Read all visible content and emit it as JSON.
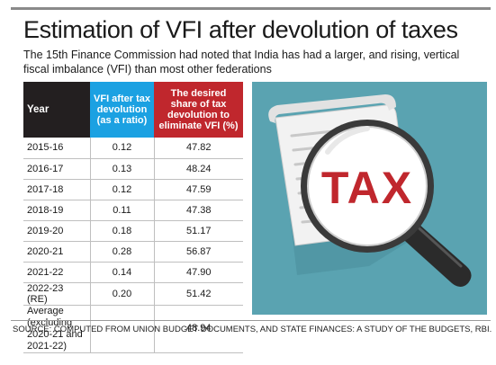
{
  "title": "Estimation of VFI after devolution of taxes",
  "subtitle": "The 15th Finance Commission had noted that India has had a larger, and rising, vertical fiscal imbalance (VFI) than most other federations",
  "table": {
    "headers": {
      "year": "Year",
      "vfi": "VFI after tax devolution (as a ratio)",
      "share": "The desired share of tax devolution to eliminate VFI (%)"
    },
    "rows": [
      {
        "year": "2015-16",
        "vfi": "0.12",
        "share": "47.82"
      },
      {
        "year": "2016-17",
        "vfi": "0.13",
        "share": "48.24"
      },
      {
        "year": "2017-18",
        "vfi": "0.12",
        "share": "47.59"
      },
      {
        "year": "2018-19",
        "vfi": "0.11",
        "share": "47.38"
      },
      {
        "year": "2019-20",
        "vfi": "0.18",
        "share": "51.17"
      },
      {
        "year": "2020-21",
        "vfi": "0.28",
        "share": "56.87"
      },
      {
        "year": "2021-22",
        "vfi": "0.14",
        "share": "47.90"
      },
      {
        "year": "2022-23 (RE)",
        "vfi": "0.20",
        "share": "51.42"
      }
    ],
    "average": {
      "label": "Average (excluding 2020-21 and 2021-22)",
      "vfi": "",
      "share": "48.94"
    }
  },
  "illustration": {
    "tax_text": "TAX",
    "icon": "magnifier-over-receipt-icon"
  },
  "colors": {
    "year_header": "#231f20",
    "vfi_header": "#1ba1e2",
    "share_header": "#c0272d",
    "illustration_bg": "#5aa3b1",
    "tax_text": "#c0272d"
  },
  "source": "SOURCE: COMPUTED FROM UNION BUDGET DOCUMENTS, AND STATE FINANCES: A STUDY OF THE BUDGETS, RBI.",
  "chart_data": {
    "type": "table",
    "title": "Estimation of VFI after devolution of taxes",
    "columns": [
      "Year",
      "VFI after tax devolution (as a ratio)",
      "The desired share of tax devolution to eliminate VFI (%)"
    ],
    "categories": [
      "2015-16",
      "2016-17",
      "2017-18",
      "2018-19",
      "2019-20",
      "2020-21",
      "2021-22",
      "2022-23 (RE)"
    ],
    "series": [
      {
        "name": "VFI after tax devolution (as a ratio)",
        "values": [
          0.12,
          0.13,
          0.12,
          0.11,
          0.18,
          0.28,
          0.14,
          0.2
        ]
      },
      {
        "name": "The desired share of tax devolution to eliminate VFI (%)",
        "values": [
          47.82,
          48.24,
          47.59,
          47.38,
          51.17,
          56.87,
          47.9,
          51.42
        ]
      }
    ]
  }
}
